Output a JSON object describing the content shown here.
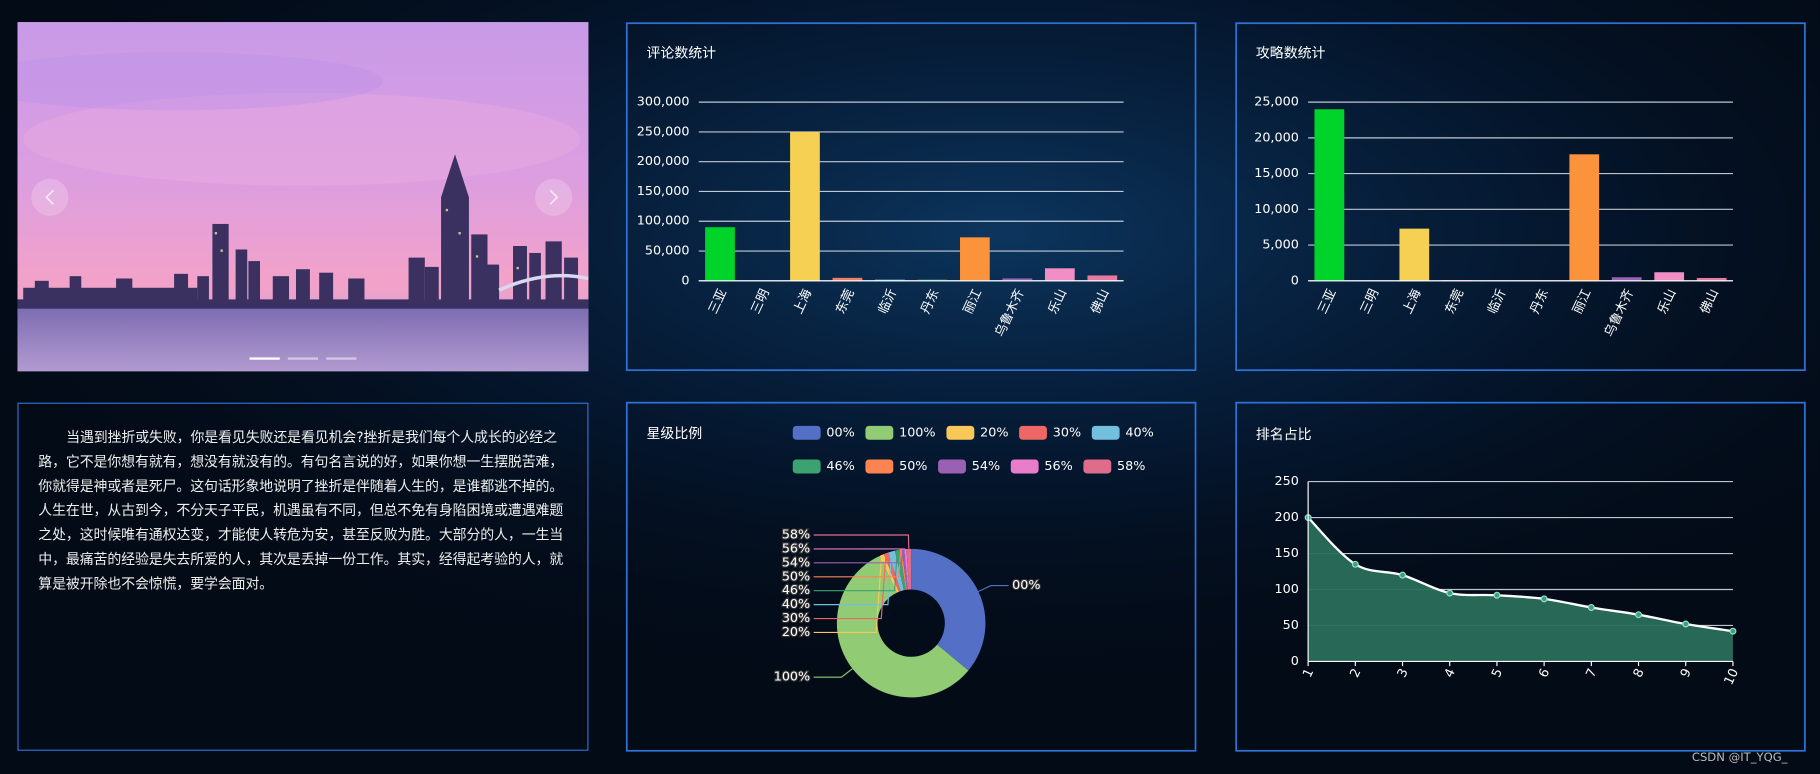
{
  "chart_data": [
    {
      "type": "bar",
      "title": "评论数统计",
      "categories": [
        "三亚",
        "三明",
        "上海",
        "东莞",
        "临沂",
        "丹东",
        "丽江",
        "乌鲁木齐",
        "乐山",
        "佛山"
      ],
      "values": [
        90000,
        500,
        250000,
        5000,
        2000,
        2000,
        73000,
        4000,
        21000,
        9000
      ],
      "colors": [
        "#00d42a",
        "#5470c6",
        "#f5d052",
        "#f47c62",
        "#6cbde8",
        "#3aa07f",
        "#fb923c",
        "#9b63b5",
        "#f28ec6",
        "#e879a0"
      ],
      "ylim": [
        0,
        300000
      ],
      "yticks": [
        0,
        {
          "value": 50000,
          "label": "50,000"
        },
        {
          "value": 100000,
          "label": "100,000"
        },
        {
          "value": 150000,
          "label": "150,000"
        },
        {
          "value": 200000,
          "label": "200,000"
        },
        {
          "value": 250000,
          "label": "250,000"
        },
        {
          "value": 300000,
          "label": "300,000"
        }
      ],
      "grid": true
    },
    {
      "type": "bar",
      "title": "攻略数统计",
      "categories": [
        "三亚",
        "三明",
        "上海",
        "东莞",
        "临沂",
        "丹东",
        "丽江",
        "乌鲁木齐",
        "乐山",
        "佛山"
      ],
      "values": [
        24000,
        30,
        7300,
        100,
        30,
        30,
        17700,
        500,
        1200,
        400
      ],
      "colors": [
        "#00d42a",
        "#5470c6",
        "#f5d052",
        "#f47c62",
        "#6cbde8",
        "#3aa07f",
        "#fb923c",
        "#9b63b5",
        "#f28ec6",
        "#e879a0"
      ],
      "ylim": [
        0,
        25000
      ],
      "yticks": [
        0,
        {
          "value": 5000,
          "label": "5,000"
        },
        {
          "value": 10000,
          "label": "10,000"
        },
        {
          "value": 15000,
          "label": "15,000"
        },
        {
          "value": 20000,
          "label": "20,000"
        },
        {
          "value": 25000,
          "label": "25,000"
        }
      ],
      "grid": true
    },
    {
      "type": "pie",
      "title": "星级比例",
      "categories": [
        "00%",
        "100%",
        "20%",
        "30%",
        "40%",
        "46%",
        "50%",
        "54%",
        "56%",
        "58%"
      ],
      "values": [
        36,
        57,
        1,
        1,
        1.5,
        1,
        0.5,
        0.5,
        0.5,
        1
      ],
      "colors": [
        "#5470c6",
        "#91cc75",
        "#fac858",
        "#ee6666",
        "#73c0de",
        "#3ba272",
        "#fc8452",
        "#9a60b4",
        "#ea7ccc",
        "#e06c8b"
      ],
      "legend": "top"
    },
    {
      "type": "area",
      "title": "排名占比",
      "x": [
        1,
        2,
        3,
        4,
        5,
        6,
        7,
        8,
        9,
        10
      ],
      "values": [
        200,
        135,
        120,
        95,
        92,
        87,
        75,
        65,
        52,
        42
      ],
      "color": "#2a6e5a",
      "line_color": "#ffffff",
      "xlim": [
        1,
        10
      ],
      "xticks": [
        1,
        2,
        3,
        4,
        5,
        6,
        7,
        8,
        9,
        10
      ],
      "ylim": [
        0,
        250
      ],
      "yticks": [
        0,
        50,
        100,
        150,
        200,
        250
      ],
      "grid": true
    }
  ],
  "article": {
    "text": "当遇到挫折或失败，你是看见失败还是看见机会?挫折是我们每个人成长的必经之路，它不是你想有就有，想没有就没有的。有句名言说的好，如果你想一生摆脱苦难，你就得是神或者是死尸。这句话形象地说明了挫折是伴随着人生的，是谁都逃不掉的。人生在世，从古到今，不分天子平民，机遇虽有不同，但总不免有身陷困境或遭遇难题之处，这时候唯有通权达变，才能使人转危为安，甚至反败为胜。大部分的人，一生当中，最痛苦的经验是失去所爱的人，其次是丢掉一份工作。其实，经得起考验的人，就算是被开除也不会惊慌，要学会面对。"
  },
  "footer": {
    "watermark": "CSDN @IT_YQG_"
  }
}
